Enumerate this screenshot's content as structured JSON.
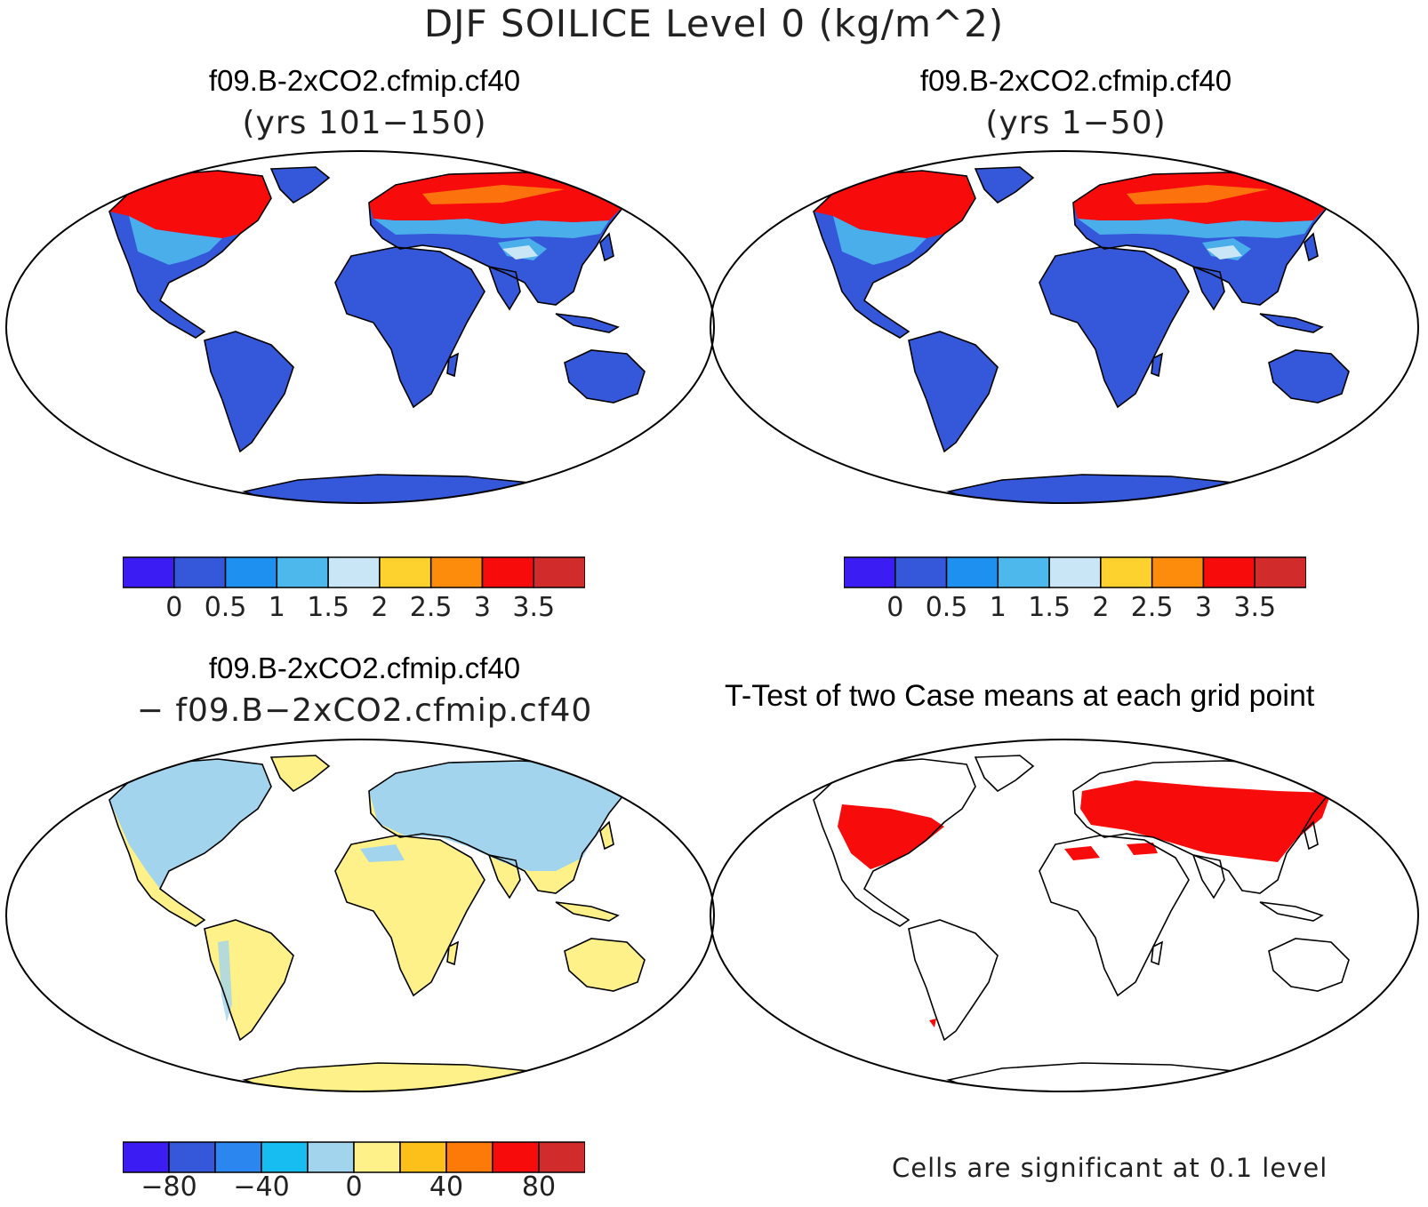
{
  "figure": {
    "title": "DJF SOILICE Level 0 (kg/m^2)"
  },
  "panels": [
    {
      "id": "case1",
      "title": "f09.B-2xCO2.cfmip.cf40",
      "subtitle": "(yrs 101−150)"
    },
    {
      "id": "case2",
      "title": "f09.B-2xCO2.cfmip.cf40",
      "subtitle": "(yrs 1−50)"
    },
    {
      "id": "diff",
      "title": "f09.B-2xCO2.cfmip.cf40",
      "subtitle": "− f09.B−2xCO2.cfmip.cf40"
    },
    {
      "id": "ttest",
      "title": "T-Test of two Case means at each grid point",
      "note": "Cells are significant at 0.1 level"
    }
  ],
  "colorbars": {
    "case": {
      "colors": [
        "#3b1cf2",
        "#3557d9",
        "#1e90f0",
        "#4cb8ec",
        "#c8e6f5",
        "#fdd22e",
        "#fd8c0c",
        "#f80b0b",
        "#d22b2b"
      ],
      "tick_labels": [
        "0",
        "0.5",
        "1",
        "1.5",
        "2",
        "2.5",
        "3",
        "3.5"
      ]
    },
    "diff": {
      "colors": [
        "#3b1cf2",
        "#3557d9",
        "#2b86ef",
        "#17bdf0",
        "#a2d4ee",
        "#fef18a",
        "#fdbf1a",
        "#fd7a08",
        "#f80b0b",
        "#d22b2b"
      ],
      "tick_labels": [
        "−80",
        "−40",
        "0",
        "40",
        "80"
      ]
    }
  },
  "legend_colors": {
    "land_low": "#3557d9",
    "significant": "#f80b0b",
    "diff_positive": "#fef18a",
    "diff_negative": "#a2d4ee"
  }
}
